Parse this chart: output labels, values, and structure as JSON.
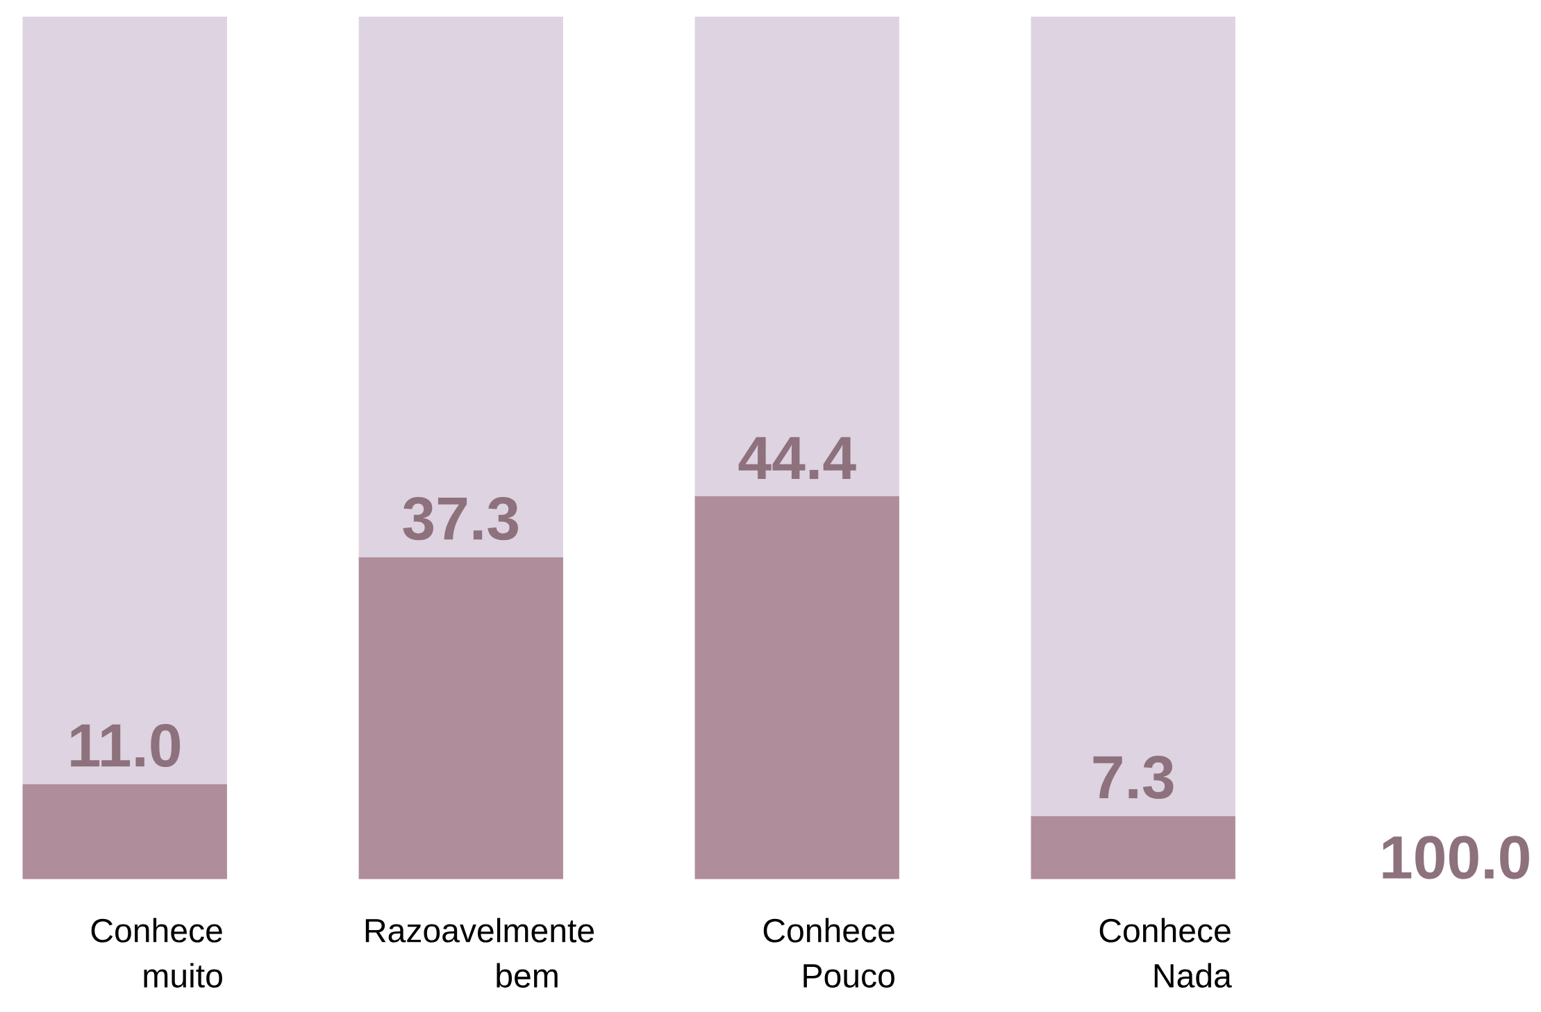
{
  "chart_data": {
    "type": "bar",
    "stacked": true,
    "categories": [
      "Conhece muito",
      "Razoavelmente bem",
      "Conhece Pouco",
      "Conhece Nada"
    ],
    "series": [
      {
        "color": "#b08d9b",
        "values": [
          11.0,
          37.3,
          44.4,
          7.3
        ],
        "value_labels": [
          "11.0",
          "37.3",
          "44.4",
          "7.3"
        ]
      },
      {
        "color": "#ded3e0",
        "values": [
          89.0,
          62.7,
          55.6,
          92.7
        ]
      }
    ],
    "ylim": [
      0,
      100
    ],
    "tick_labels": "x",
    "annotations": [
      "100.0"
    ]
  }
}
